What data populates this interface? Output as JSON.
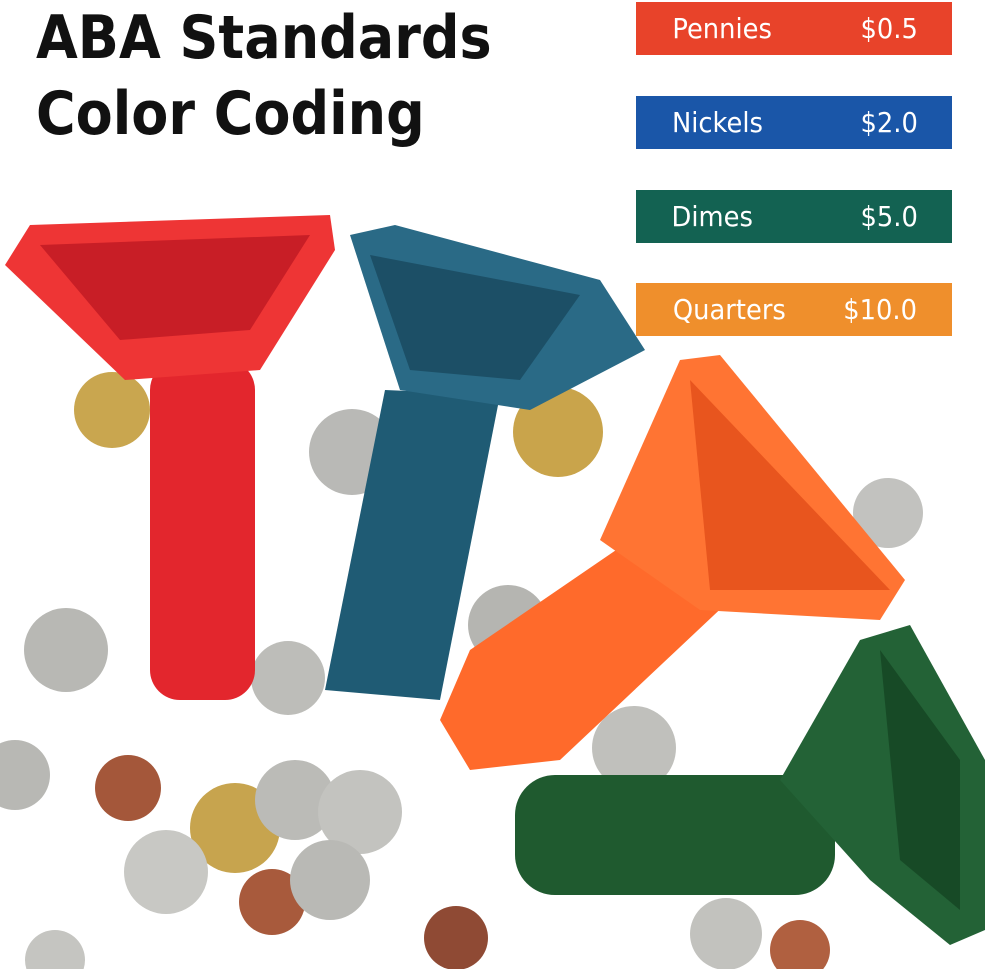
{
  "heading": {
    "line1": "ABA Standards",
    "line2": "Color Coding"
  },
  "legend": [
    {
      "coin": "Pennies",
      "value": "$0.5",
      "color": "#e8432a"
    },
    {
      "coin": "Nickels",
      "value": "$2.0",
      "color": "#1a56a8"
    },
    {
      "coin": "Dimes",
      "value": "$5.0",
      "color": "#136252"
    },
    {
      "coin": "Quarters",
      "value": "$10.0",
      "color": "#ef8f2c"
    }
  ],
  "product_colors": {
    "red": "#e3262d",
    "blue": "#1f5b74",
    "orange": "#ff6a2b",
    "green": "#1f5a2f"
  }
}
